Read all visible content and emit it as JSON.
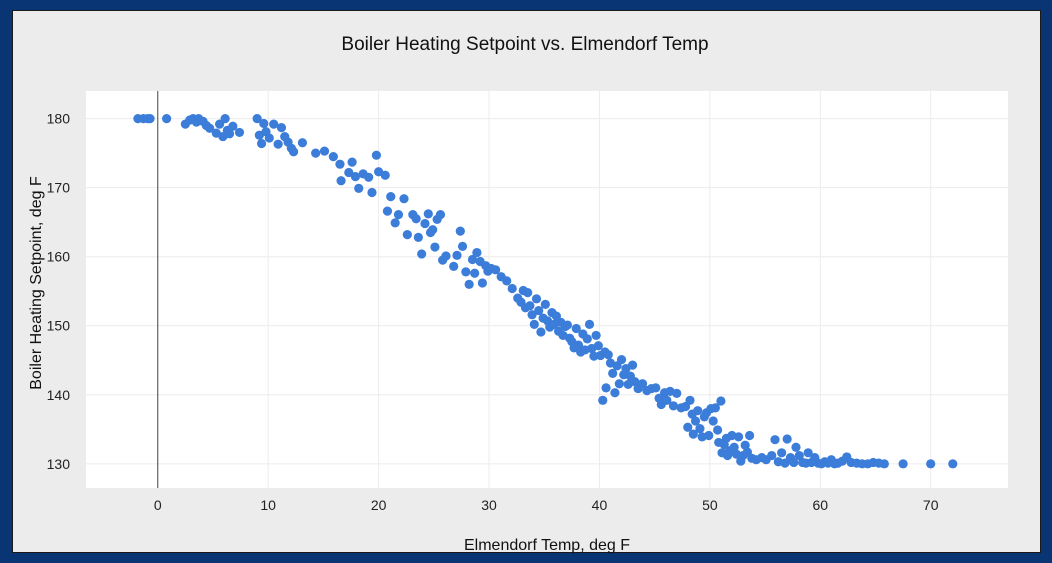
{
  "chart_data": {
    "type": "scatter",
    "title": "Boiler Heating Setpoint vs. Elmendorf Temp",
    "xlabel": "Elmendorf Temp, deg F",
    "ylabel": "Boiler Heating  Setpoint, deg F",
    "xlim": [
      -6.5,
      77
    ],
    "ylim": [
      126.5,
      184
    ],
    "xticks": [
      0,
      10,
      20,
      30,
      40,
      50,
      60,
      70
    ],
    "yticks": [
      130,
      140,
      150,
      160,
      170,
      180
    ],
    "xtick_labels": [
      "0",
      "10",
      "20",
      "30",
      "40",
      "50",
      "60",
      "70"
    ],
    "ytick_labels": [
      "130",
      "140",
      "150",
      "160",
      "170",
      "180"
    ],
    "grid": true,
    "marker_color": "#3b7dd8",
    "points": [
      [
        -1.8,
        180
      ],
      [
        -1.3,
        180
      ],
      [
        -0.9,
        180
      ],
      [
        -0.7,
        180
      ],
      [
        0.8,
        180
      ],
      [
        2.5,
        179.2
      ],
      [
        2.9,
        179.8
      ],
      [
        3.2,
        180
      ],
      [
        3.5,
        179.5
      ],
      [
        3.7,
        180
      ],
      [
        4.1,
        179.6
      ],
      [
        4.4,
        179
      ],
      [
        4.7,
        178.6
      ],
      [
        5.3,
        177.9
      ],
      [
        5.6,
        179.2
      ],
      [
        5.9,
        177.4
      ],
      [
        6.1,
        180
      ],
      [
        6.3,
        178.3
      ],
      [
        6.5,
        177.8
      ],
      [
        6.8,
        178.9
      ],
      [
        7.4,
        178
      ],
      [
        9.0,
        180
      ],
      [
        9.2,
        177.6
      ],
      [
        9.4,
        176.4
      ],
      [
        9.6,
        179.3
      ],
      [
        9.8,
        178.1
      ],
      [
        10.1,
        177.2
      ],
      [
        10.5,
        179.2
      ],
      [
        10.9,
        176.3
      ],
      [
        11.2,
        178.7
      ],
      [
        11.5,
        177.4
      ],
      [
        11.8,
        176.6
      ],
      [
        12.1,
        175.7
      ],
      [
        12.3,
        175.2
      ],
      [
        13.1,
        176.5
      ],
      [
        14.3,
        175
      ],
      [
        15.1,
        175.3
      ],
      [
        15.9,
        174.5
      ],
      [
        16.5,
        173.4
      ],
      [
        16.6,
        171
      ],
      [
        17.3,
        172.2
      ],
      [
        17.6,
        173.7
      ],
      [
        17.9,
        171.6
      ],
      [
        18.2,
        169.9
      ],
      [
        18.6,
        172
      ],
      [
        19.1,
        171.5
      ],
      [
        19.4,
        169.3
      ],
      [
        19.8,
        174.7
      ],
      [
        20.0,
        172.3
      ],
      [
        20.6,
        171.8
      ],
      [
        20.8,
        166.6
      ],
      [
        21.1,
        168.7
      ],
      [
        21.5,
        164.9
      ],
      [
        21.8,
        166.1
      ],
      [
        22.3,
        168.4
      ],
      [
        22.6,
        163.2
      ],
      [
        23.1,
        166.1
      ],
      [
        23.4,
        165.5
      ],
      [
        23.6,
        162.8
      ],
      [
        23.9,
        160.4
      ],
      [
        24.2,
        164.8
      ],
      [
        24.5,
        166.2
      ],
      [
        24.7,
        163.5
      ],
      [
        24.9,
        163.9
      ],
      [
        25.1,
        161.4
      ],
      [
        25.3,
        165.4
      ],
      [
        25.6,
        166.1
      ],
      [
        25.8,
        159.5
      ],
      [
        26.1,
        160.1
      ],
      [
        26.8,
        158.6
      ],
      [
        27.1,
        160.2
      ],
      [
        27.4,
        163.7
      ],
      [
        27.6,
        161.5
      ],
      [
        27.9,
        157.8
      ],
      [
        28.2,
        156
      ],
      [
        28.5,
        159.6
      ],
      [
        28.7,
        157.6
      ],
      [
        28.9,
        160.6
      ],
      [
        29.2,
        159.3
      ],
      [
        29.4,
        156.2
      ],
      [
        29.7,
        158.7
      ],
      [
        29.9,
        157.9
      ],
      [
        30.2,
        158.3
      ],
      [
        30.6,
        158.1
      ],
      [
        31.1,
        157.1
      ],
      [
        31.6,
        156.5
      ],
      [
        32.1,
        155.4
      ],
      [
        32.6,
        154
      ],
      [
        32.9,
        153.4
      ],
      [
        33.1,
        155.1
      ],
      [
        33.3,
        152.6
      ],
      [
        33.5,
        154.8
      ],
      [
        33.7,
        152.9
      ],
      [
        33.9,
        151.6
      ],
      [
        34.1,
        150.2
      ],
      [
        34.3,
        153.9
      ],
      [
        34.5,
        152.2
      ],
      [
        34.7,
        149.1
      ],
      [
        34.9,
        151.1
      ],
      [
        35.1,
        153.1
      ],
      [
        35.3,
        150.7
      ],
      [
        35.5,
        149.8
      ],
      [
        35.7,
        151.9
      ],
      [
        35.9,
        150.2
      ],
      [
        36.1,
        151.4
      ],
      [
        36.3,
        149.2
      ],
      [
        36.5,
        150.5
      ],
      [
        36.7,
        148.6
      ],
      [
        36.9,
        149.9
      ],
      [
        37.1,
        150.1
      ],
      [
        37.3,
        148.2
      ],
      [
        37.5,
        147.7
      ],
      [
        37.7,
        146.8
      ],
      [
        37.9,
        149.6
      ],
      [
        38.1,
        147.2
      ],
      [
        38.3,
        146.2
      ],
      [
        38.5,
        148.8
      ],
      [
        38.7,
        146.5
      ],
      [
        38.9,
        148.1
      ],
      [
        39.1,
        150.2
      ],
      [
        39.3,
        146.7
      ],
      [
        39.5,
        145.6
      ],
      [
        39.7,
        148.6
      ],
      [
        39.9,
        147.1
      ],
      [
        40.1,
        145.7
      ],
      [
        40.3,
        139.2
      ],
      [
        40.5,
        146.2
      ],
      [
        40.6,
        141
      ],
      [
        40.8,
        145.8
      ],
      [
        41.0,
        144.6
      ],
      [
        41.2,
        143.1
      ],
      [
        41.4,
        140.3
      ],
      [
        41.6,
        144.2
      ],
      [
        41.8,
        141.6
      ],
      [
        42.0,
        145.1
      ],
      [
        42.2,
        142.9
      ],
      [
        42.4,
        143.8
      ],
      [
        42.6,
        141.5
      ],
      [
        42.8,
        142.7
      ],
      [
        43.0,
        144.3
      ],
      [
        43.2,
        141.9
      ],
      [
        43.5,
        140.9
      ],
      [
        43.9,
        141.6
      ],
      [
        44.3,
        140.6
      ],
      [
        44.7,
        140.9
      ],
      [
        45.1,
        141
      ],
      [
        45.4,
        139.5
      ],
      [
        45.6,
        138.6
      ],
      [
        45.9,
        140.3
      ],
      [
        46.1,
        139.2
      ],
      [
        46.4,
        140.5
      ],
      [
        46.7,
        138.4
      ],
      [
        47.0,
        140.2
      ],
      [
        47.4,
        138.1
      ],
      [
        47.8,
        138.3
      ],
      [
        48.0,
        135.3
      ],
      [
        48.2,
        139.2
      ],
      [
        48.4,
        137.2
      ],
      [
        48.5,
        134.3
      ],
      [
        48.7,
        136.2
      ],
      [
        48.9,
        137.7
      ],
      [
        49.1,
        135.1
      ],
      [
        49.3,
        133.9
      ],
      [
        49.5,
        136.8
      ],
      [
        49.7,
        137.4
      ],
      [
        49.9,
        134.1
      ],
      [
        50.1,
        138
      ],
      [
        50.3,
        136.2
      ],
      [
        50.5,
        138.1
      ],
      [
        50.7,
        134.9
      ],
      [
        50.8,
        133.1
      ],
      [
        51.0,
        139.1
      ],
      [
        51.1,
        131.6
      ],
      [
        51.3,
        132.8
      ],
      [
        51.5,
        133.7
      ],
      [
        51.6,
        131.2
      ],
      [
        51.8,
        131.9
      ],
      [
        52.0,
        134.1
      ],
      [
        52.2,
        132.4
      ],
      [
        52.4,
        131.4
      ],
      [
        52.6,
        133.9
      ],
      [
        52.8,
        130.4
      ],
      [
        53.0,
        131.2
      ],
      [
        53.2,
        132.7
      ],
      [
        53.4,
        131.7
      ],
      [
        53.6,
        134.1
      ],
      [
        53.8,
        130.8
      ],
      [
        54.2,
        130.6
      ],
      [
        54.7,
        130.9
      ],
      [
        55.1,
        130.6
      ],
      [
        55.6,
        131.2
      ],
      [
        55.9,
        133.5
      ],
      [
        56.2,
        130.3
      ],
      [
        56.5,
        131.6
      ],
      [
        56.8,
        130.1
      ],
      [
        57.0,
        133.6
      ],
      [
        57.3,
        130.9
      ],
      [
        57.6,
        130.2
      ],
      [
        57.8,
        132.4
      ],
      [
        58.1,
        131.2
      ],
      [
        58.4,
        130.2
      ],
      [
        58.7,
        130.1
      ],
      [
        58.9,
        131.6
      ],
      [
        59.2,
        130.2
      ],
      [
        59.5,
        130.9
      ],
      [
        59.8,
        130.1
      ],
      [
        60.1,
        130
      ],
      [
        60.4,
        130.3
      ],
      [
        60.7,
        130.1
      ],
      [
        61.0,
        130.6
      ],
      [
        61.3,
        130
      ],
      [
        61.6,
        130.1
      ],
      [
        62.0,
        130.4
      ],
      [
        62.4,
        131
      ],
      [
        62.8,
        130.2
      ],
      [
        63.3,
        130.1
      ],
      [
        63.8,
        130
      ],
      [
        64.3,
        130
      ],
      [
        64.8,
        130.2
      ],
      [
        65.3,
        130.1
      ],
      [
        65.8,
        130
      ],
      [
        67.5,
        130
      ],
      [
        70.0,
        130
      ],
      [
        72.0,
        130
      ]
    ]
  }
}
